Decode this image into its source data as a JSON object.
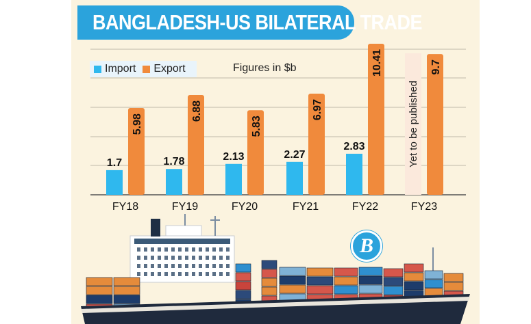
{
  "header": {
    "title": "BANGLADESH-US BILATERAL TRADE"
  },
  "note": "Figures in $b",
  "colors": {
    "import": "#2fb8ee",
    "export": "#f08a3c",
    "title_bg": "#2ba3dc",
    "panel": "#fbf3df",
    "grid": "#bfb8a8"
  },
  "chart_data": {
    "type": "bar",
    "title": "BANGLADESH-US BILATERAL TRADE",
    "categories": [
      "FY18",
      "FY19",
      "FY20",
      "FY21",
      "FY22",
      "FY23"
    ],
    "series": [
      {
        "name": "Import",
        "values": [
          1.7,
          1.78,
          2.13,
          2.27,
          2.83,
          null
        ],
        "labels": [
          "1.7",
          "1.78",
          "2.13",
          "2.27",
          "2.83",
          ""
        ]
      },
      {
        "name": "Export",
        "values": [
          5.98,
          6.88,
          5.83,
          6.97,
          10.41,
          9.7
        ],
        "labels": [
          "5.98",
          "6.88",
          "5.83",
          "6.97",
          "10.41",
          "9.7"
        ]
      }
    ],
    "annotations": [
      {
        "category": "FY23",
        "series": "Import",
        "text": "Yet to be published"
      }
    ],
    "legend": "top-left",
    "grid": true,
    "ylim": [
      0,
      10.41
    ]
  },
  "icons": {
    "logo": "publication-logo-icon",
    "ship": "container-ship-illustration"
  },
  "logo_letter": "B"
}
